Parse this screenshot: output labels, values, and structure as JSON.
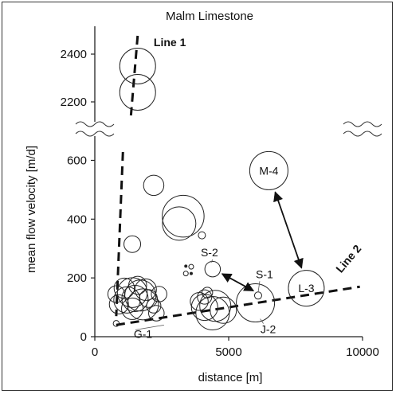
{
  "chart_data": {
    "type": "scatter",
    "title": "Malm Limestone",
    "xlabel": "distance [m]",
    "ylabel": "mean flow velocity [m/d]",
    "xlim": [
      0,
      10000
    ],
    "x_ticks": [
      0,
      5000,
      10000
    ],
    "x_tick_labels": [
      "0",
      "5000",
      "10000"
    ],
    "y_axis_broken": true,
    "y_lower_range": [
      0,
      650
    ],
    "y_lower_ticks": [
      0,
      200,
      400,
      600
    ],
    "y_upper_range": [
      2150,
      2450
    ],
    "y_upper_ticks": [
      2200,
      2400
    ],
    "y_tick_labels": [
      "0",
      "200",
      "400",
      "600",
      "2200",
      "2400"
    ],
    "points": [
      {
        "x": 1600,
        "y": 2350,
        "size": 3
      },
      {
        "x": 1600,
        "y": 2240,
        "size": 3
      },
      {
        "x": 2200,
        "y": 515,
        "size": 1.7
      },
      {
        "x": 3300,
        "y": 410,
        "size": 3.5
      },
      {
        "x": 3150,
        "y": 385,
        "size": 2.8
      },
      {
        "x": 4000,
        "y": 345,
        "size": 0.6
      },
      {
        "x": 1400,
        "y": 315,
        "size": 1.4
      },
      {
        "x": 4400,
        "y": 230,
        "size": 1.3,
        "label": "S-2"
      },
      {
        "x": 3600,
        "y": 238,
        "size": 0.4
      },
      {
        "x": 3400,
        "y": 215,
        "size": 0.4
      },
      {
        "x": 6100,
        "y": 140,
        "size": 0.6,
        "label": "S-1"
      },
      {
        "x": 6000,
        "y": 115,
        "size": 3.2,
        "label": "J-2"
      },
      {
        "x": 7900,
        "y": 165,
        "size": 3,
        "label": "L-3"
      },
      {
        "x": 6500,
        "y": 565,
        "size": 3.2,
        "label": "M-4"
      },
      {
        "x": 4200,
        "y": 150,
        "size": 0.9
      },
      {
        "x": 4100,
        "y": 135,
        "size": 1.2
      },
      {
        "x": 3900,
        "y": 120,
        "size": 1.5
      },
      {
        "x": 4500,
        "y": 105,
        "size": 2.6
      },
      {
        "x": 4100,
        "y": 100,
        "size": 2.2
      },
      {
        "x": 4800,
        "y": 90,
        "size": 2.2
      },
      {
        "x": 4400,
        "y": 80,
        "size": 2.8
      },
      {
        "x": 800,
        "y": 45,
        "size": 0.5,
        "label": "G-1"
      },
      {
        "x": 800,
        "y": 145,
        "size": 1.4
      },
      {
        "x": 900,
        "y": 110,
        "size": 1.6
      },
      {
        "x": 1100,
        "y": 165,
        "size": 1.7
      },
      {
        "x": 1200,
        "y": 125,
        "size": 2.2
      },
      {
        "x": 1400,
        "y": 150,
        "size": 2.5
      },
      {
        "x": 1500,
        "y": 130,
        "size": 2.2
      },
      {
        "x": 1600,
        "y": 175,
        "size": 1.5
      },
      {
        "x": 1700,
        "y": 140,
        "size": 2.6
      },
      {
        "x": 1800,
        "y": 110,
        "size": 2.6
      },
      {
        "x": 1900,
        "y": 160,
        "size": 1.8
      },
      {
        "x": 1400,
        "y": 95,
        "size": 1.8
      },
      {
        "x": 2000,
        "y": 130,
        "size": 1.5
      },
      {
        "x": 2400,
        "y": 145,
        "size": 1.3
      },
      {
        "x": 2300,
        "y": 80,
        "size": 1.3
      },
      {
        "x": 2200,
        "y": 105,
        "size": 1.2
      }
    ],
    "lines": [
      {
        "name": "Line 1",
        "style": "dashed"
      },
      {
        "name": "Line 2",
        "style": "dashed"
      }
    ],
    "arrows": [
      {
        "from": "M-4",
        "to": "L-3"
      },
      {
        "from": "S-1",
        "to": "S-2"
      }
    ],
    "grid": false
  }
}
